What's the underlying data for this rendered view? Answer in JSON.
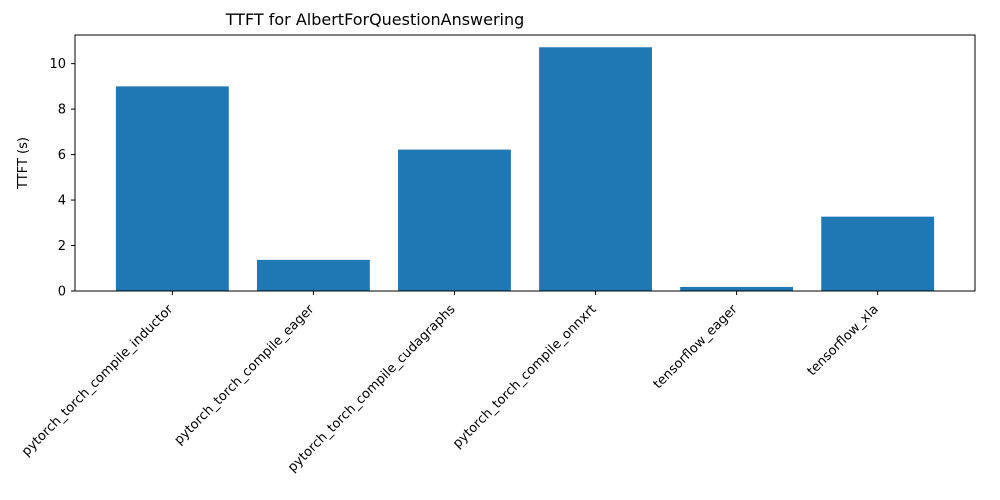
{
  "chart_data": {
    "type": "bar",
    "title": "TTFT for AlbertForQuestionAnswering",
    "xlabel": "",
    "ylabel": "TTFT (s)",
    "categories": [
      "pytorch_torch_compile_inductor",
      "pytorch_torch_compile_eager",
      "pytorch_torch_compile_cudagraphs",
      "pytorch_torch_compile_onnxrt",
      "tensorflow_eager",
      "tensorflow_xla"
    ],
    "values": [
      9.0,
      1.37,
      6.22,
      10.72,
      0.18,
      3.27
    ],
    "ylim": [
      0,
      11.26
    ],
    "yticks": [
      0,
      2,
      4,
      6,
      8,
      10
    ],
    "bar_color": "#1f77b4",
    "grid": false,
    "legend": "none"
  }
}
